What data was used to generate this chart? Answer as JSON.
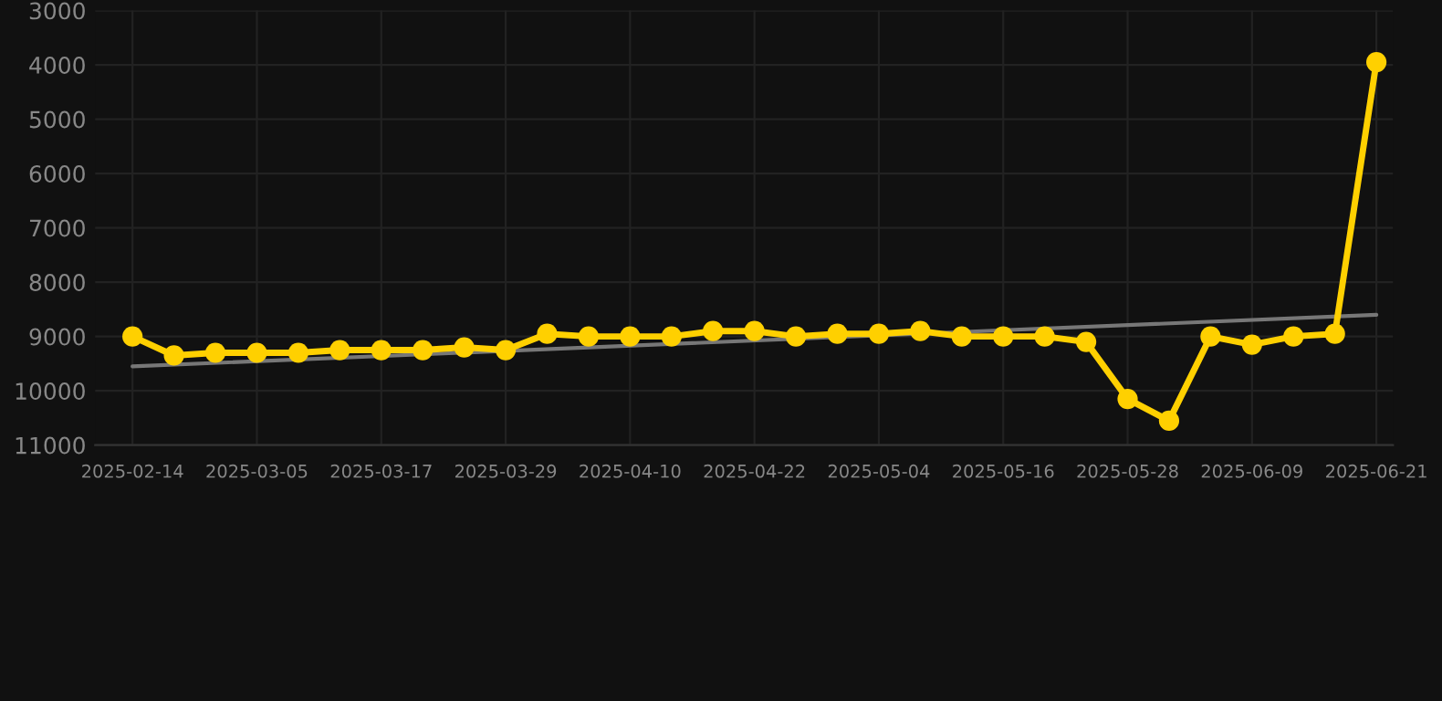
{
  "chart_data": {
    "type": "line",
    "categories": [
      "2025-02-14",
      null,
      null,
      "2025-03-05",
      null,
      null,
      "2025-03-17",
      null,
      null,
      "2025-03-29",
      null,
      null,
      "2025-04-10",
      null,
      null,
      "2025-04-22",
      null,
      null,
      "2025-05-04",
      null,
      null,
      "2025-05-16",
      null,
      null,
      "2025-05-28",
      null,
      null,
      "2025-06-09",
      null,
      null,
      "2025-06-21"
    ],
    "series": [
      {
        "color": "#ffd000",
        "marker": "circle",
        "values": [
          9000,
          9350,
          9300,
          9300,
          9300,
          9250,
          9250,
          9250,
          9200,
          9250,
          8950,
          9000,
          9000,
          9000,
          8900,
          8900,
          9000,
          8950,
          8950,
          8900,
          9000,
          9000,
          9000,
          9100,
          10150,
          10550,
          9000,
          9150,
          9000,
          8950,
          3950
        ]
      },
      {
        "type": "line",
        "color": "#777777",
        "marker": "none",
        "values": [
          9550,
          null,
          null,
          null,
          null,
          null,
          null,
          null,
          null,
          null,
          null,
          null,
          null,
          null,
          null,
          null,
          null,
          null,
          null,
          null,
          null,
          null,
          null,
          null,
          null,
          null,
          null,
          null,
          null,
          null,
          8600
        ]
      }
    ],
    "ylim": [
      11000,
      3000
    ],
    "yticks": [
      3000,
      4000,
      5000,
      6000,
      7000,
      8000,
      9000,
      10000,
      11000
    ],
    "grid": true
  }
}
